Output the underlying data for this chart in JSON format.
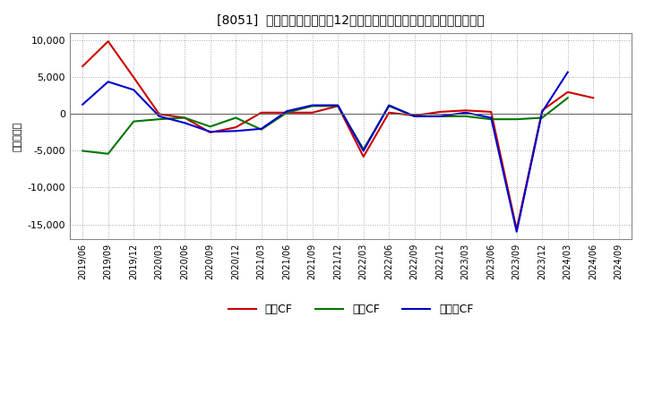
{
  "title": "[8051]  キャッシュフローの12か月移動合計の対前年同期増減額の推移",
  "ylabel": "（百万円）",
  "background_color": "#ffffff",
  "plot_bg_color": "#ffffff",
  "grid_color": "#aaaaaa",
  "ylim": [
    -17000,
    11000
  ],
  "yticks": [
    -15000,
    -10000,
    -5000,
    0,
    5000,
    10000
  ],
  "dates": [
    "2019/06",
    "2019/09",
    "2019/12",
    "2020/03",
    "2020/06",
    "2020/09",
    "2020/12",
    "2021/03",
    "2021/06",
    "2021/09",
    "2021/12",
    "2022/03",
    "2022/06",
    "2022/09",
    "2022/12",
    "2023/03",
    "2023/06",
    "2023/09",
    "2023/12",
    "2024/03",
    "2024/06",
    "2024/09"
  ],
  "operating_cf": [
    6500,
    9900,
    5000,
    0,
    -500,
    -2500,
    -1800,
    200,
    200,
    200,
    1100,
    -5800,
    200,
    -200,
    300,
    500,
    300,
    -15700,
    500,
    3000,
    2200,
    null
  ],
  "investing_cf": [
    -5000,
    -5400,
    -1000,
    -700,
    -500,
    -1700,
    -500,
    -2100,
    200,
    1100,
    1100,
    -4800,
    1100,
    -300,
    -300,
    -300,
    -700,
    -700,
    -500,
    2200,
    null,
    null
  ],
  "free_cf": [
    1300,
    4400,
    3300,
    -300,
    -1200,
    -2400,
    -2300,
    -2000,
    400,
    1200,
    1200,
    -5000,
    1200,
    -300,
    -300,
    200,
    -500,
    -16000,
    300,
    5700,
    null,
    null
  ],
  "series_colors": {
    "operating_cf": "#cc0000",
    "investing_cf": "#007700",
    "free_cf": "#0000cc"
  },
  "legend_labels": {
    "operating_cf": "営業CF",
    "investing_cf": "投資CF",
    "free_cf": "フリーCF"
  },
  "line_width": 1.5
}
